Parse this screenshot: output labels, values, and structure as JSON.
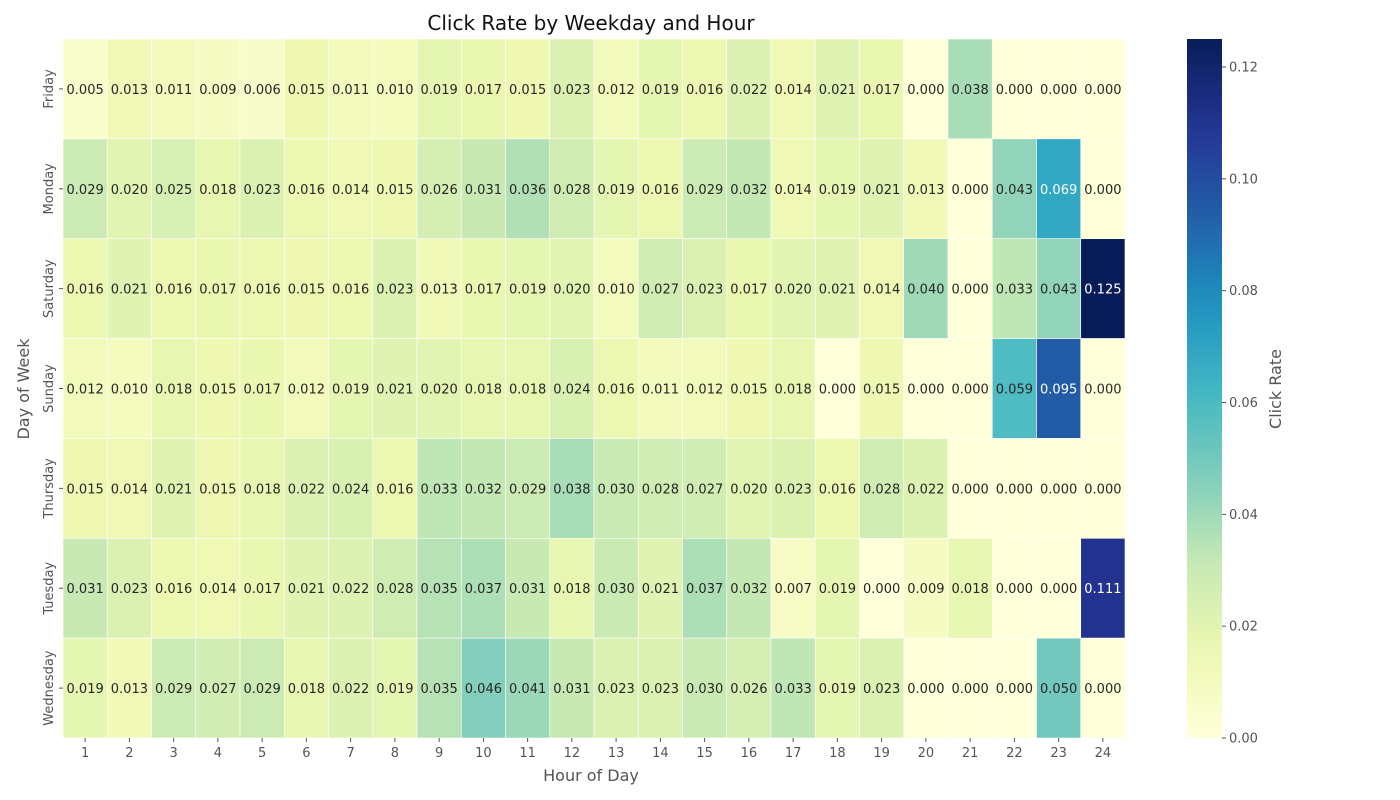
{
  "chart_data": {
    "type": "heatmap",
    "title": "Click Rate by Weekday and Hour",
    "xlabel": "Hour of Day",
    "ylabel": "Day of Week",
    "colorbar_label": "Click Rate",
    "colormap": "YlGnBu",
    "colorbar_range": [
      0.0,
      0.125
    ],
    "colorbar_ticks": [
      "0.00",
      "0.02",
      "0.04",
      "0.06",
      "0.08",
      "0.10",
      "0.12"
    ],
    "x_categories": [
      "1",
      "2",
      "3",
      "4",
      "5",
      "6",
      "7",
      "8",
      "9",
      "10",
      "11",
      "12",
      "13",
      "14",
      "15",
      "16",
      "17",
      "18",
      "19",
      "20",
      "21",
      "22",
      "23",
      "24"
    ],
    "y_categories": [
      "Friday",
      "Monday",
      "Saturday",
      "Sunday",
      "Thursday",
      "Tuesday",
      "Wednesday"
    ],
    "values": [
      [
        0.005,
        0.013,
        0.011,
        0.009,
        0.006,
        0.015,
        0.011,
        0.01,
        0.019,
        0.017,
        0.015,
        0.023,
        0.012,
        0.019,
        0.016,
        0.022,
        0.014,
        0.021,
        0.017,
        0.0,
        0.038,
        0.0,
        0.0,
        0.0
      ],
      [
        0.029,
        0.02,
        0.025,
        0.018,
        0.023,
        0.016,
        0.014,
        0.015,
        0.026,
        0.031,
        0.036,
        0.028,
        0.019,
        0.016,
        0.029,
        0.032,
        0.014,
        0.019,
        0.021,
        0.013,
        0.0,
        0.043,
        0.069,
        0.0
      ],
      [
        0.016,
        0.021,
        0.016,
        0.017,
        0.016,
        0.015,
        0.016,
        0.023,
        0.013,
        0.017,
        0.019,
        0.02,
        0.01,
        0.027,
        0.023,
        0.017,
        0.02,
        0.021,
        0.014,
        0.04,
        0.0,
        0.033,
        0.043,
        0.125
      ],
      [
        0.012,
        0.01,
        0.018,
        0.015,
        0.017,
        0.012,
        0.019,
        0.021,
        0.02,
        0.018,
        0.018,
        0.024,
        0.016,
        0.011,
        0.012,
        0.015,
        0.018,
        0.0,
        0.015,
        0.0,
        0.0,
        0.059,
        0.095,
        0.0
      ],
      [
        0.015,
        0.014,
        0.021,
        0.015,
        0.018,
        0.022,
        0.024,
        0.016,
        0.033,
        0.032,
        0.029,
        0.038,
        0.03,
        0.028,
        0.027,
        0.02,
        0.023,
        0.016,
        0.028,
        0.022,
        0.0,
        0.0,
        0.0,
        0.0
      ],
      [
        0.031,
        0.023,
        0.016,
        0.014,
        0.017,
        0.021,
        0.022,
        0.028,
        0.035,
        0.037,
        0.031,
        0.018,
        0.03,
        0.021,
        0.037,
        0.032,
        0.007,
        0.019,
        0.0,
        0.009,
        0.018,
        0.0,
        0.0,
        0.111
      ],
      [
        0.019,
        0.013,
        0.029,
        0.027,
        0.029,
        0.018,
        0.022,
        0.019,
        0.035,
        0.046,
        0.041,
        0.031,
        0.023,
        0.023,
        0.03,
        0.026,
        0.033,
        0.019,
        0.023,
        0.0,
        0.0,
        0.0,
        0.05,
        0.0
      ]
    ],
    "value_format_decimals": 3
  }
}
